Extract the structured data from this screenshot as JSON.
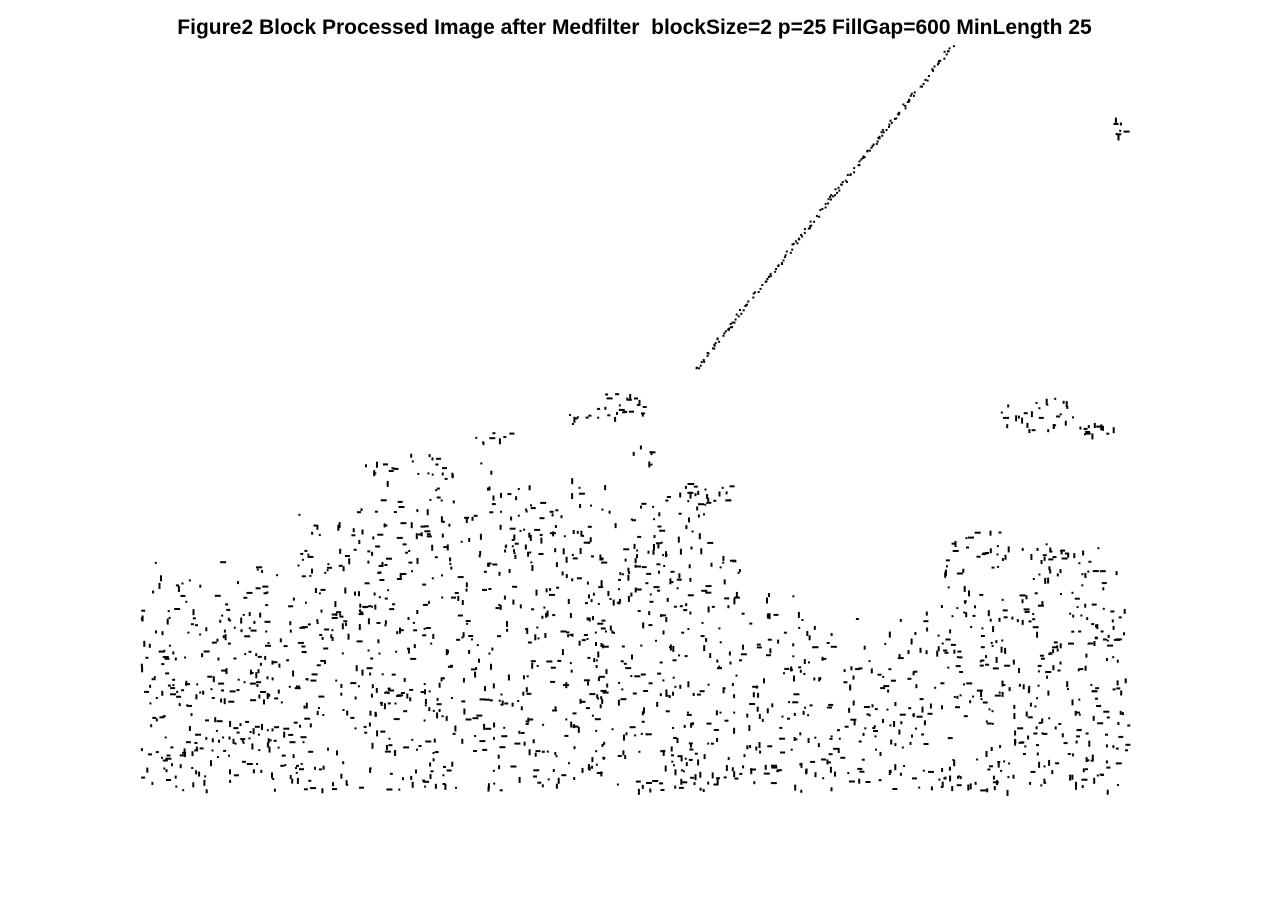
{
  "figure": {
    "title": "Figure2 Block Processed Image after Medfilter  blockSize=2 p=25 FillGap=600 MinLength 25",
    "foreground_color": "#000000",
    "background_color": "#ffffff"
  }
}
